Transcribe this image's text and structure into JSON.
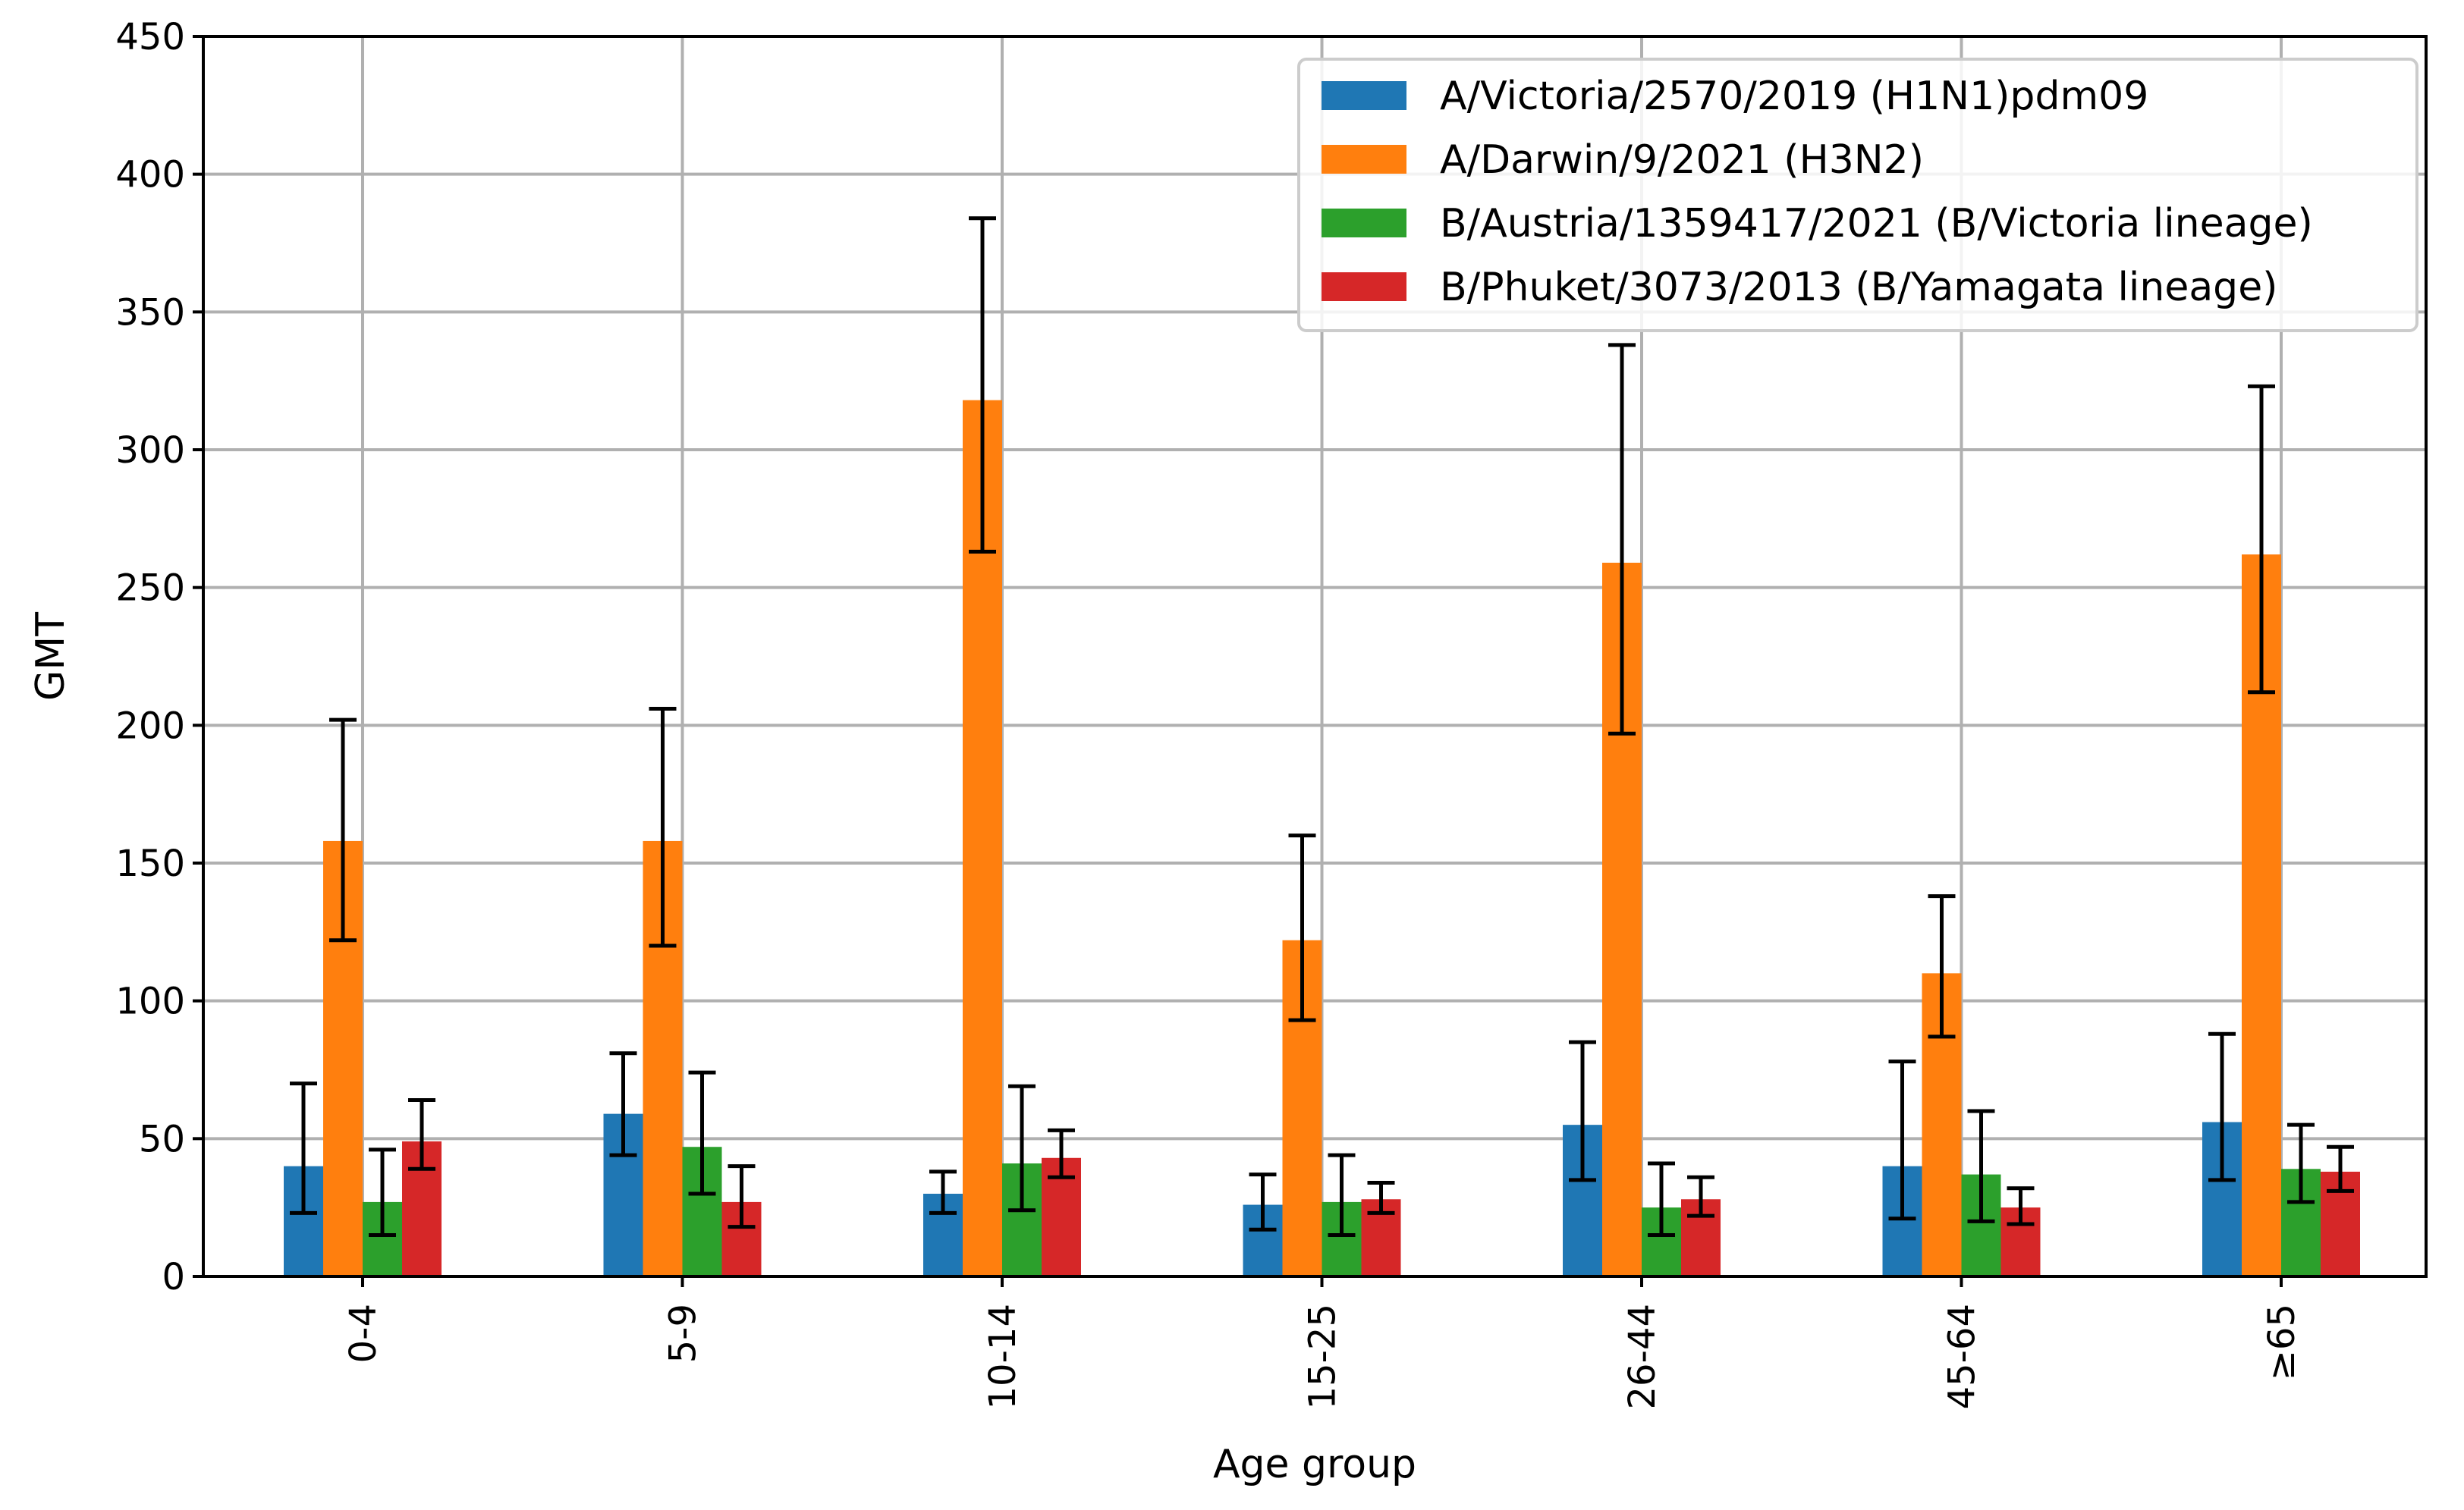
{
  "chart_data": {
    "type": "bar",
    "title": "",
    "xlabel": "Age group",
    "ylabel": "GMT",
    "ylim": [
      0,
      450
    ],
    "yticks": [
      0,
      50,
      100,
      150,
      200,
      250,
      300,
      350,
      400,
      450
    ],
    "grid": true,
    "legend_position": "top-right",
    "categories": [
      "0-4",
      "5-9",
      "10-14",
      "15-25",
      "26-44",
      "45-64",
      "≥65"
    ],
    "series": [
      {
        "name": "A/Victoria/2570/2019 (H1N1)pdm09",
        "color": "#1f77b4",
        "values": [
          40,
          59,
          30,
          26,
          55,
          40,
          56
        ],
        "err_low": [
          23,
          44,
          23,
          17,
          35,
          21,
          35
        ],
        "err_high": [
          70,
          81,
          38,
          37,
          85,
          78,
          88
        ]
      },
      {
        "name": "A/Darwin/9/2021 (H3N2)",
        "color": "#ff7f0e",
        "values": [
          158,
          158,
          318,
          122,
          259,
          110,
          262
        ],
        "err_low": [
          122,
          120,
          263,
          93,
          197,
          87,
          212
        ],
        "err_high": [
          202,
          206,
          384,
          160,
          338,
          138,
          323
        ]
      },
      {
        "name": "B/Austria/1359417/2021 (B/Victoria lineage)",
        "color": "#2ca02c",
        "values": [
          27,
          47,
          41,
          27,
          25,
          37,
          39
        ],
        "err_low": [
          15,
          30,
          24,
          15,
          15,
          20,
          27
        ],
        "err_high": [
          46,
          74,
          69,
          44,
          41,
          60,
          55
        ]
      },
      {
        "name": "B/Phuket/3073/2013 (B/Yamagata lineage)",
        "color": "#d62728",
        "values": [
          49,
          27,
          43,
          28,
          28,
          25,
          38
        ],
        "err_low": [
          39,
          18,
          36,
          23,
          22,
          19,
          31
        ],
        "err_high": [
          64,
          40,
          53,
          34,
          36,
          32,
          47
        ]
      }
    ]
  }
}
